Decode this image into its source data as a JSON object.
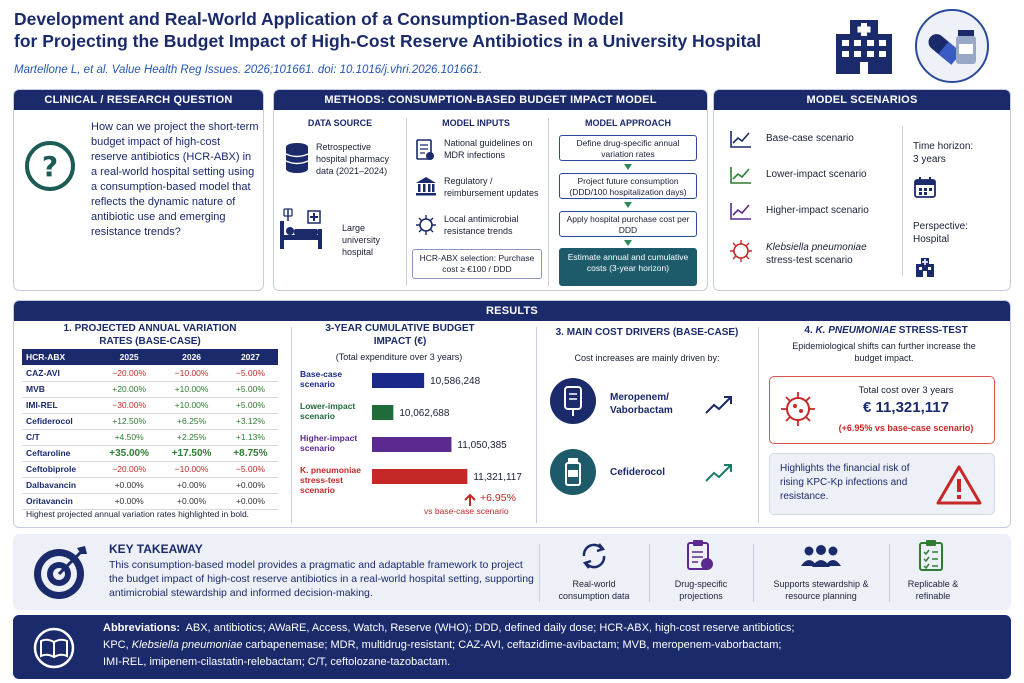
{
  "header": {
    "title_line1": "Development and Real-World Application of a Consumption-Based Model",
    "title_line2": "for Projecting the Budget Impact of High-Cost Reserve Antibiotics in a University Hospital",
    "citation": "Martellone L, et al. Value Health Reg Issues. 2026;101661. doi: 10.1016/j.vhri.2026.101661."
  },
  "question": {
    "heading": "CLINICAL / RESEARCH QUESTION",
    "text": "How can we project the short-term budget impact of high-cost reserve antibiotics (HCR-ABX) in a real-world hospital setting using a consumption-based model that reflects the dynamic nature of antibiotic use and emerging resistance trends?"
  },
  "methods": {
    "heading": "METHODS: CONSUMPTION-BASED BUDGET IMPACT MODEL",
    "data_source": {
      "title": "DATA SOURCE",
      "item1": "Retrospective hospital pharmacy data (2021–2024)",
      "item2": "Large university hospital"
    },
    "inputs": {
      "title": "MODEL INPUTS",
      "item1": "National guidelines on MDR infections",
      "item2": "Regulatory / reimbursement updates",
      "item3": "Local antimicrobial resistance trends",
      "selection": "HCR-ABX selection: Purchase cost ≥ €100 / DDD"
    },
    "approach": {
      "title": "MODEL APPROACH",
      "step1": "Define drug-specific annual variation rates",
      "step2": "Project future consumption (DDD/100 hospitalization days)",
      "step3": "Apply hospital purchase cost per DDD",
      "step4": "Estimate annual and cumulative costs (3-year horizon)"
    }
  },
  "scenarios": {
    "heading": "MODEL SCENARIOS",
    "items": [
      "Base-case scenario",
      "Lower-impact scenario",
      "Higher-impact scenario"
    ],
    "stress_italic": "Klebsiella pneumoniae",
    "stress_rest": "stress-test scenario",
    "time_label": "Time horizon:",
    "time_value": "3 years",
    "persp_label": "Perspective:",
    "persp_value": "Hospital"
  },
  "results": {
    "heading": "RESULTS",
    "table": {
      "title": "1. PROJECTED ANNUAL VARIATION RATES (BASE-CASE)",
      "headers": [
        "HCR-ABX",
        "2025",
        "2026",
        "2027"
      ],
      "rows": [
        [
          "CAZ-AVI",
          "−20.00%",
          "−10.00%",
          "−5.00%"
        ],
        [
          "MVB",
          "+20.00%",
          "+10.00%",
          "+5.00%"
        ],
        [
          "IMI-REL",
          "−30.00%",
          "+10.00%",
          "+5.00%"
        ],
        [
          "Cefiderocol",
          "+12.50%",
          "+6.25%",
          "+3.12%"
        ],
        [
          "C/T",
          "+4.50%",
          "+2.25%",
          "+1.13%"
        ],
        [
          "Ceftaroline",
          "+35.00%",
          "+17.50%",
          "+8.75%"
        ],
        [
          "Ceftobiprole",
          "−20.00%",
          "−10.00%",
          "−5.00%"
        ],
        [
          "Dalbavancin",
          "+0.00%",
          "+0.00%",
          "+0.00%"
        ],
        [
          "Oritavancin",
          "+0.00%",
          "+0.00%",
          "+0.00%"
        ]
      ],
      "note": "Highest projected annual variation rates highlighted in bold."
    },
    "cumulative": {
      "title": "2. 3-YEAR CUMULATIVE BUDGET IMPACT (€)",
      "subtitle": "(Total expenditure over 3 years)",
      "delta": "+6.95%",
      "delta_note": "vs base-case scenario"
    },
    "drivers": {
      "title": "3. MAIN COST DRIVERS (BASE-CASE)",
      "subtitle": "Cost increases are mainly driven by:",
      "item1": "Meropenem/ Vaborbactam",
      "item2": "Cefiderocol"
    },
    "stress": {
      "title_italic": "K. PNEUMONIAE",
      "title_rest": "STRESS-TEST",
      "title_num": "4.",
      "subtitle": "Epidemiological shifts can further increase the budget impact.",
      "total_label": "Total cost over 3 years",
      "total_value": "€ 11,321,117",
      "total_note": "(+6.95% vs base-case scenario)",
      "risk": "Highlights the financial risk of rising KPC-Kp infections and resistance."
    }
  },
  "chart_data": {
    "type": "bar",
    "orientation": "horizontal",
    "title": "3-YEAR CUMULATIVE BUDGET IMPACT (€)",
    "categories": [
      "Base-case scenario",
      "Lower-impact scenario",
      "Higher-impact scenario",
      "K. pneumoniae stress-test scenario"
    ],
    "values": [
      10586248,
      10062688,
      11050385,
      11321117
    ],
    "labels": [
      "10,586,248",
      "10,062,688",
      "11,050,385",
      "11,321,117"
    ],
    "colors": [
      "#1b2a8a",
      "#1f6b3a",
      "#5a2a91",
      "#c62828"
    ],
    "xlim": [
      9700000,
      11400000
    ]
  },
  "takeaway": {
    "heading": "KEY TAKEAWAY",
    "text": "This consumption-based model provides a pragmatic and adaptable framework to project the budget impact of high-cost reserve antibiotics in a real-world hospital setting, supporting antimicrobial stewardship and informed decision-making.",
    "features": [
      "Real-world consumption data",
      "Drug-specific projections",
      "Supports stewardship & resource planning",
      "Replicable & refinable"
    ]
  },
  "abbreviations": {
    "label": "Abbreviations:",
    "line1": "ABX, antibiotics; AWaRE, Access, Watch, Reserve (WHO); DDD, defined daily dose; HCR-ABX, high-cost reserve antibiotics;",
    "line2a": "KPC,",
    "line2_italic": "Klebsiella pneumoniae",
    "line2b": "carbapenemase; MDR, multidrug-resistant; CAZ-AVI, ceftazidime-avibactam; MVB, meropenem-vaborbactam;",
    "line3": "IMI-REL, imipenem-cilastatin-relebactam; C/T, ceftolozane-tazobactam."
  }
}
